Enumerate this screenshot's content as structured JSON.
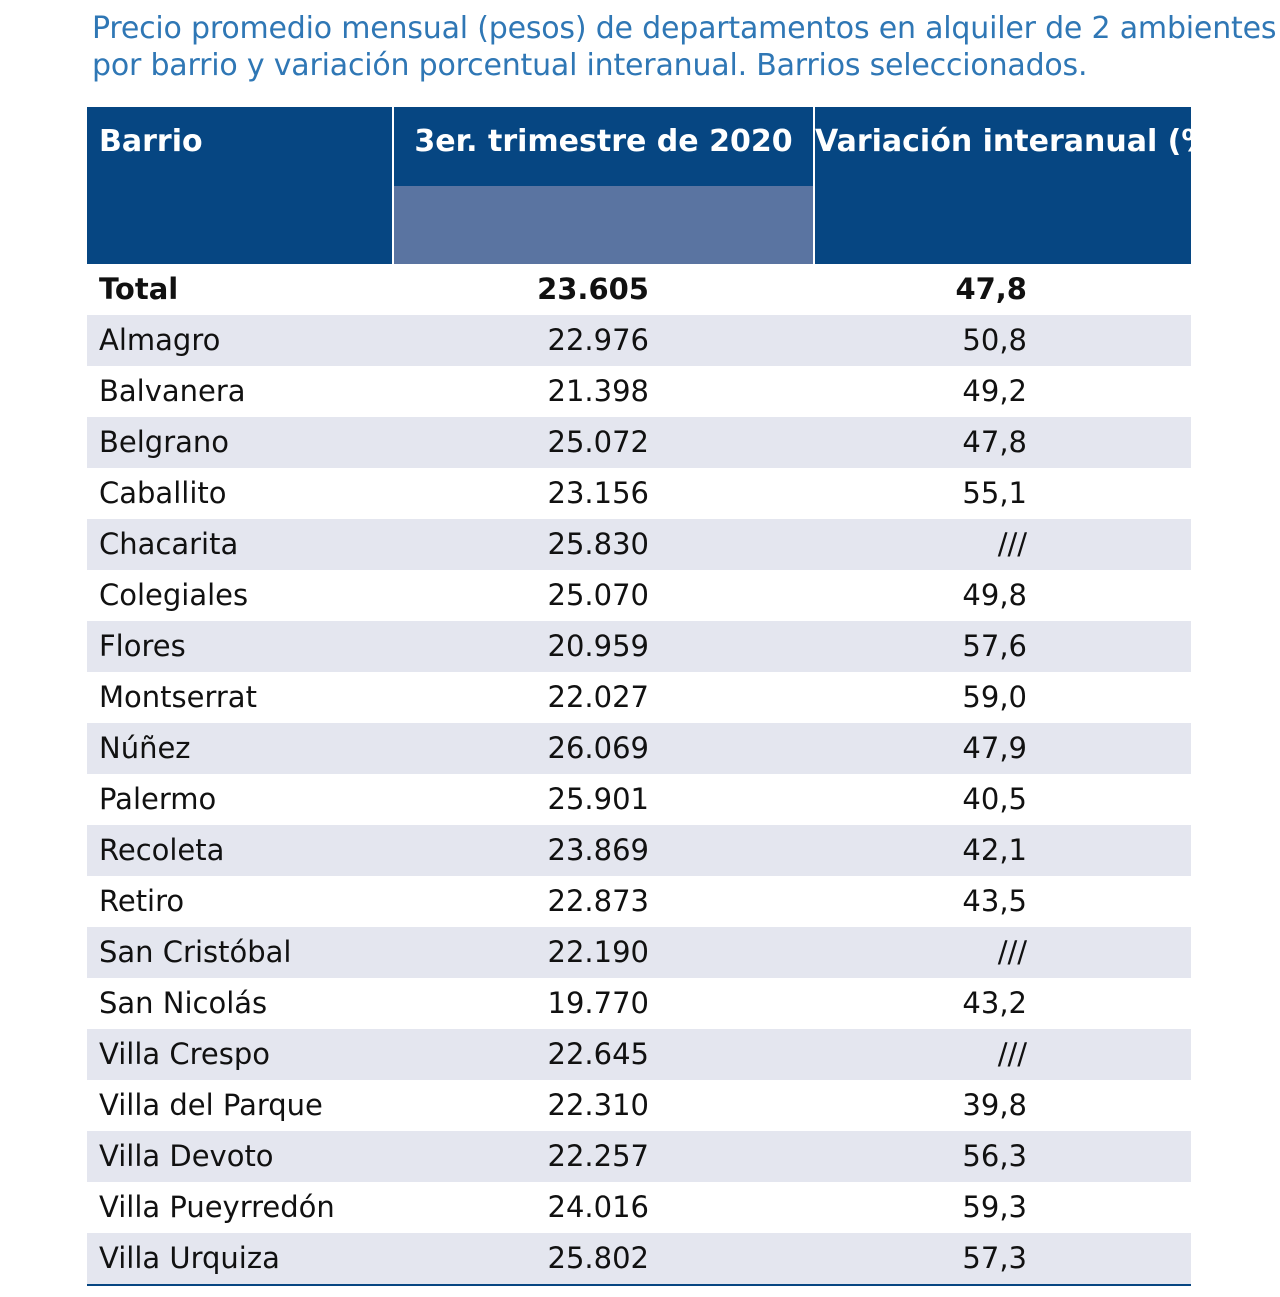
{
  "title": {
    "line1": "Precio promedio mensual (pesos) de departamentos en alquiler de 2 ambientes",
    "line2": "por barrio y variación porcentual interanual. Barrios seleccionados."
  },
  "table": {
    "headers": {
      "barrio": "Barrio",
      "price": "3er. trimestre de 2020",
      "variation": "Variación interanual (%)"
    },
    "total": {
      "barrio": "Total",
      "price": "23.605",
      "variation": "47,8"
    },
    "rows": [
      {
        "barrio": "Almagro",
        "price": "22.976",
        "variation": "50,8"
      },
      {
        "barrio": "Balvanera",
        "price": "21.398",
        "variation": "49,2"
      },
      {
        "barrio": "Belgrano",
        "price": "25.072",
        "variation": "47,8"
      },
      {
        "barrio": "Caballito",
        "price": "23.156",
        "variation": "55,1"
      },
      {
        "barrio": "Chacarita",
        "price": "25.830",
        "variation": "///"
      },
      {
        "barrio": "Colegiales",
        "price": "25.070",
        "variation": "49,8"
      },
      {
        "barrio": "Flores",
        "price": "20.959",
        "variation": "57,6"
      },
      {
        "barrio": "Montserrat",
        "price": "22.027",
        "variation": "59,0"
      },
      {
        "barrio": "Núñez",
        "price": "26.069",
        "variation": "47,9"
      },
      {
        "barrio": "Palermo",
        "price": "25.901",
        "variation": "40,5"
      },
      {
        "barrio": "Recoleta",
        "price": "23.869",
        "variation": "42,1"
      },
      {
        "barrio": "Retiro",
        "price": "22.873",
        "variation": "43,5"
      },
      {
        "barrio": "San Cristóbal",
        "price": "22.190",
        "variation": "///"
      },
      {
        "barrio": "San Nicolás",
        "price": "19.770",
        "variation": "43,2"
      },
      {
        "barrio": "Villa Crespo",
        "price": "22.645",
        "variation": "///"
      },
      {
        "barrio": "Villa del Parque",
        "price": "22.310",
        "variation": "39,8"
      },
      {
        "barrio": "Villa Devoto",
        "price": "22.257",
        "variation": "56,3"
      },
      {
        "barrio": "Villa Pueyrredón",
        "price": "24.016",
        "variation": "59,3"
      },
      {
        "barrio": "Villa Urquiza",
        "price": "25.802",
        "variation": "57,3"
      }
    ]
  },
  "colors": {
    "title": "#2f77b5",
    "header_bg": "#064682",
    "header_subband": "#5a74a1",
    "row_shade": "#e4e6ef"
  }
}
